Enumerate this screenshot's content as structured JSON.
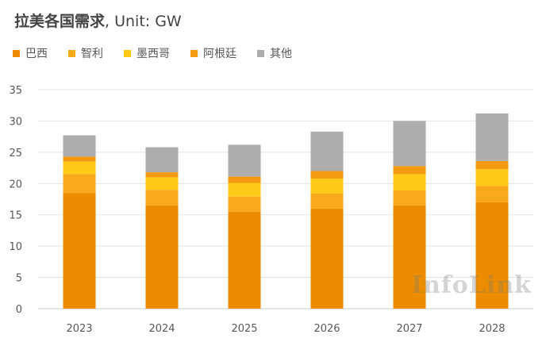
{
  "chart_data": {
    "type": "bar",
    "stacked": true,
    "title": "拉美各国需求",
    "subtitle": ", Unit: GW",
    "categories": [
      "2023",
      "2024",
      "2025",
      "2026",
      "2027",
      "2028"
    ],
    "series": [
      {
        "name": "巴西",
        "color": "#EE8C00",
        "values": [
          18.5,
          16.5,
          15.5,
          16.0,
          16.5,
          17.0
        ]
      },
      {
        "name": "智利",
        "color": "#F7A91B",
        "values": [
          3.0,
          2.5,
          2.4,
          2.4,
          2.4,
          2.6
        ]
      },
      {
        "name": "墨西哥",
        "color": "#FFC917",
        "values": [
          2.0,
          2.0,
          2.2,
          2.4,
          2.6,
          2.7
        ]
      },
      {
        "name": "阿根廷",
        "color": "#F39A10",
        "values": [
          0.8,
          0.8,
          1.0,
          1.2,
          1.3,
          1.3
        ]
      },
      {
        "name": "其他",
        "color": "#ADADAD",
        "values": [
          3.4,
          4.0,
          5.1,
          6.3,
          7.2,
          7.6
        ]
      }
    ],
    "ylim": [
      0,
      35
    ],
    "yticks": [
      0,
      5,
      10,
      15,
      20,
      25,
      30,
      35
    ],
    "grid": true,
    "legend_position": "top-left"
  },
  "watermark": "InfoLink"
}
